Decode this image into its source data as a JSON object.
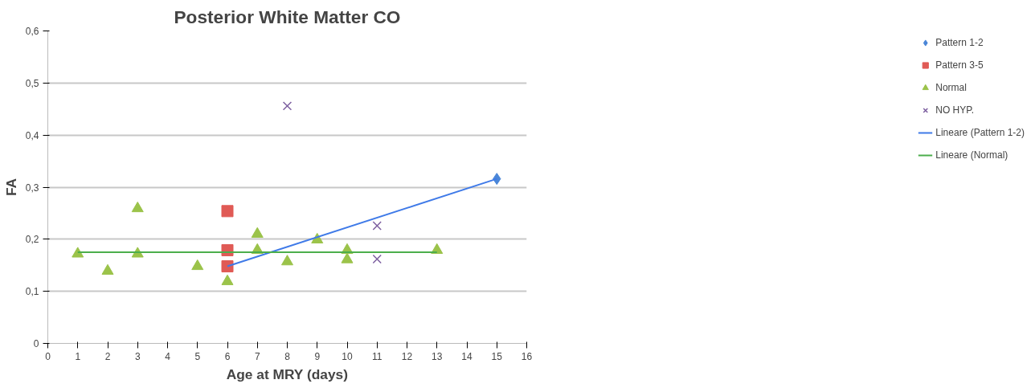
{
  "chart_data": {
    "type": "scatter",
    "title": "Posterior White Matter CO",
    "xlabel": "Age at MRY (days)",
    "ylabel": "FA",
    "xlim": [
      0,
      16
    ],
    "xticks": [
      0,
      1,
      2,
      3,
      4,
      5,
      6,
      7,
      8,
      9,
      10,
      11,
      12,
      13,
      14,
      15,
      16
    ],
    "ylim": [
      0,
      0.6
    ],
    "yticks": [
      0,
      {
        "value": 0.1,
        "label": "0,1"
      },
      {
        "value": 0.2,
        "label": "0,2"
      },
      {
        "value": 0.3,
        "label": "0,3"
      },
      {
        "value": 0.4,
        "label": "0,4"
      },
      {
        "value": 0.5,
        "label": "0,5"
      },
      {
        "value": 0.6,
        "label": "0,6"
      }
    ],
    "grid": "y",
    "legend": "right",
    "series": [
      {
        "name": "Pattern 1-2",
        "marker": "diamond",
        "color": "#4a86d8",
        "x": [
          15
        ],
        "values": [
          0.316
        ]
      },
      {
        "name": "Pattern 3-5",
        "marker": "square",
        "color": "#e05a55",
        "x": [
          6,
          6,
          6
        ],
        "values": [
          0.254,
          0.179,
          0.148
        ]
      },
      {
        "name": "Normal",
        "marker": "triangle",
        "color": "#9bc34a",
        "x": [
          1,
          2,
          3,
          3,
          5,
          6,
          7,
          7,
          8,
          9,
          10,
          10,
          13
        ],
        "values": [
          0.172,
          0.139,
          0.259,
          0.172,
          0.148,
          0.119,
          0.21,
          0.179,
          0.157,
          0.199,
          0.179,
          0.161,
          0.179
        ]
      },
      {
        "name": "NO HYP.",
        "marker": "cross",
        "color": "#7d5fa0",
        "x": [
          8,
          11,
          11
        ],
        "values": [
          0.456,
          0.226,
          0.162
        ]
      },
      {
        "name": "Lineare (Pattern 1-2)",
        "type": "line",
        "color": "#3f7ae8",
        "x": [
          6,
          15
        ],
        "values": [
          0.148,
          0.316
        ]
      },
      {
        "name": "Lineare (Normal)",
        "type": "line",
        "color": "#4cae4c",
        "x": [
          1,
          13
        ],
        "values": [
          0.175,
          0.175
        ]
      }
    ]
  }
}
